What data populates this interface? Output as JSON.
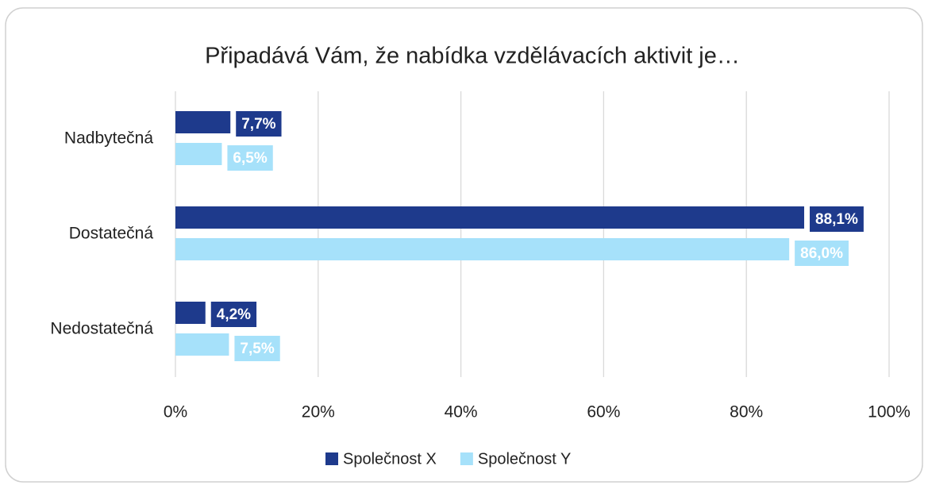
{
  "chart_data": {
    "type": "hbar",
    "title": "Připadává Vám, že nabídka vzdělávacích aktivit je…",
    "categories": [
      "Nadbytečná",
      "Dostatečná",
      "Nedostatečná"
    ],
    "series": [
      {
        "name": "Společnost X",
        "color": "#1e3a8c",
        "values": [
          7.7,
          88.1,
          4.2
        ],
        "value_labels": [
          "7,7%",
          "88,1%",
          "4,2%"
        ]
      },
      {
        "name": "Společnost Y",
        "color": "#a6e1fa",
        "values": [
          6.5,
          86.0,
          7.5
        ],
        "value_labels": [
          "6,5%",
          "86,0%",
          "7,5%"
        ]
      }
    ],
    "xlim": [
      0,
      100
    ],
    "xticks": [
      {
        "value": 0,
        "label": "0%"
      },
      {
        "value": 20,
        "label": "20%"
      },
      {
        "value": 40,
        "label": "40%"
      },
      {
        "value": 60,
        "label": "60%"
      },
      {
        "value": 80,
        "label": "80%"
      },
      {
        "value": 100,
        "label": "100%"
      }
    ],
    "grid": true,
    "legend": "bottom"
  }
}
